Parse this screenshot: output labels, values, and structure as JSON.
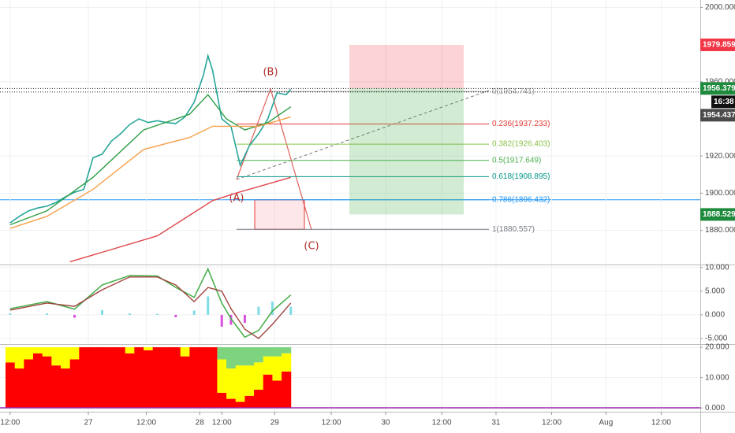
{
  "chart_data": [
    {
      "type": "line",
      "xlim": [
        -2.2,
        150
      ],
      "ylim": [
        1862,
        2004
      ],
      "grid": true,
      "yticks": [
        {
          "value": 2000,
          "label": "2000.000"
        },
        {
          "value": 1960,
          "label": "1960.000"
        },
        {
          "value": 1920,
          "label": "1920.000"
        },
        {
          "value": 1900,
          "label": "1900.000"
        },
        {
          "value": 1880,
          "label": "1880.000"
        }
      ],
      "series": [
        {
          "color": "#26a69a",
          "x": [
            0,
            2,
            4,
            6,
            8,
            10,
            12,
            14,
            16,
            18,
            20,
            22,
            24,
            26,
            28,
            30,
            32,
            34,
            36,
            38,
            40,
            42,
            43,
            44,
            46,
            48,
            50,
            52,
            54,
            56,
            58,
            60,
            61
          ],
          "values": [
            1884,
            1887.5,
            1890.5,
            1892,
            1893,
            1895,
            1898,
            1900.5,
            1902,
            1919,
            1921,
            1928,
            1932,
            1937,
            1940,
            1938,
            1939,
            1938,
            1937.5,
            1941,
            1949,
            1963.5,
            1974,
            1966,
            1940,
            1936,
            1915,
            1925.5,
            1932,
            1940,
            1954,
            1953,
            1956
          ]
        },
        {
          "color": "#2e9e46",
          "x": [
            0,
            8,
            18,
            29,
            39,
            43,
            47,
            51,
            56,
            61
          ],
          "values": [
            1883,
            1890.5,
            1908.5,
            1934,
            1942.5,
            1953,
            1940,
            1934,
            1938,
            1946.5
          ]
        },
        {
          "color": "#f5a04a",
          "x": [
            0,
            8,
            18,
            29,
            39,
            44,
            49,
            54,
            61
          ],
          "values": [
            1881,
            1887.5,
            1902,
            1923.5,
            1930,
            1936,
            1936,
            1936,
            1941
          ]
        },
        {
          "color": "#e0474c",
          "x": [
            13,
            32,
            44,
            49,
            61
          ],
          "values": [
            1863,
            1877,
            1896,
            1900,
            1908.5
          ]
        }
      ],
      "fib_levels": [
        {
          "value": 1954.741,
          "label": "0(1954.741)",
          "color": "#9e9e9e"
        },
        {
          "value": 1937.233,
          "label": "0.236(1937.233)",
          "color": "#e53935"
        },
        {
          "value": 1926.403,
          "label": "0.382(1926.403)",
          "color": "#8bc34a"
        },
        {
          "value": 1917.649,
          "label": "0.5(1917.649)",
          "color": "#4caf50"
        },
        {
          "value": 1908.895,
          "label": "0.618(1908.895)",
          "color": "#009688"
        },
        {
          "value": 1896.432,
          "label": "0.786(1896.432)",
          "color": "#2196f3"
        },
        {
          "value": 1880.557,
          "label": "1(1880.557)",
          "color": "#787b86"
        }
      ],
      "price_tags": [
        {
          "value": 1979.859,
          "color": "#f23645"
        },
        {
          "value": 1956.379,
          "color": "#1e8a3c"
        },
        {
          "value": 1954.437,
          "color": "#4a4a4a"
        },
        {
          "value": 1888.529,
          "color": "#1e8a3c"
        }
      ],
      "countdown": "16:38",
      "annotations": [
        "(A)",
        "(B)",
        "(C)"
      ]
    },
    {
      "type": "line",
      "xlim": [
        -2.2,
        150
      ],
      "ylim": [
        -6,
        10.3
      ],
      "grid": true,
      "yticks": [
        {
          "value": 10,
          "label": "10.000"
        },
        {
          "value": 5,
          "label": "5.000"
        },
        {
          "value": 0,
          "label": "0.000"
        },
        {
          "value": -5,
          "label": "-5.000"
        }
      ],
      "series": [
        {
          "color": "#4caf50",
          "x": [
            0,
            8,
            14,
            20,
            26,
            32,
            36,
            40,
            43,
            46,
            48,
            51,
            54,
            57,
            61
          ],
          "values": [
            1.3,
            2.8,
            1.2,
            6.3,
            8.3,
            8.2,
            5.8,
            3.7,
            9.7,
            2.5,
            -0.8,
            -4.7,
            -3.3,
            0.8,
            4.2
          ]
        },
        {
          "color": "#a1443f",
          "x": [
            0,
            8,
            14,
            20,
            26,
            32,
            36,
            40,
            43,
            46,
            48,
            51,
            54,
            57,
            61
          ],
          "values": [
            1.0,
            2.5,
            1.8,
            5.3,
            8,
            8,
            6.3,
            2.8,
            5.8,
            5,
            1.3,
            -3,
            -5,
            -2,
            2.5
          ]
        }
      ],
      "histogram": {
        "colors": [
          "#7fdbe6",
          "#d84fe0"
        ],
        "x": [
          0,
          8,
          14,
          20,
          26,
          32,
          36,
          40,
          43,
          46,
          48,
          51,
          54,
          57,
          61
        ],
        "values": [
          0.3,
          0.3,
          -0.6,
          1,
          0.3,
          0.2,
          -0.5,
          0.9,
          3.9,
          -2.5,
          -2.1,
          -1.7,
          1.7,
          2.8,
          1.7
        ]
      }
    },
    {
      "type": "bar",
      "stacked": true,
      "xlim": [
        -2.2,
        150
      ],
      "ylim": [
        -1,
        20.8
      ],
      "grid": true,
      "yticks": [
        {
          "value": 20,
          "label": "20.000"
        },
        {
          "value": 10,
          "label": "10.000"
        },
        {
          "value": 0,
          "label": "0.000"
        }
      ],
      "xticks": [
        {
          "value": 0,
          "label": "12:00"
        },
        {
          "value": 17,
          "label": "27"
        },
        {
          "value": 29.6,
          "label": "12:00"
        },
        {
          "value": 41.2,
          "label": "28"
        },
        {
          "value": 46,
          "label": "12:00"
        },
        {
          "value": 57.5,
          "label": "29"
        },
        {
          "value": 69.8,
          "label": "12:00"
        },
        {
          "value": 81.6,
          "label": "30"
        },
        {
          "value": 93.8,
          "label": "12:00"
        },
        {
          "value": 105.6,
          "label": "31"
        },
        {
          "value": 117.7,
          "label": "12:00"
        },
        {
          "value": 129.5,
          "label": "Aug"
        },
        {
          "value": 141.5,
          "label": "12:00"
        }
      ],
      "x": [
        0,
        2,
        4,
        6,
        8,
        10,
        12,
        14,
        16,
        18,
        20,
        22,
        24,
        26,
        28,
        30,
        32,
        34,
        36,
        38,
        40,
        42,
        44,
        46,
        48,
        50,
        52,
        54,
        56,
        58,
        60
      ],
      "series": [
        {
          "color": "#ff0000",
          "values": [
            15,
            13,
            16,
            18,
            17,
            14,
            13,
            16,
            20,
            20,
            20,
            20,
            20,
            18,
            20,
            19,
            20,
            20,
            20,
            17,
            20,
            20,
            20,
            5,
            3,
            2,
            4,
            6,
            11,
            9,
            12
          ]
        },
        {
          "color": "#ffff00",
          "values": [
            5,
            7,
            4,
            2,
            3,
            6,
            7,
            4,
            0,
            0,
            0,
            0,
            0,
            2,
            0,
            1,
            0,
            0,
            0,
            3,
            0,
            0,
            0,
            11,
            10,
            12,
            10,
            9,
            6,
            8,
            6
          ]
        },
        {
          "color": "#7ed47e",
          "values": [
            0,
            0,
            0,
            0,
            0,
            0,
            0,
            0,
            0,
            0,
            0,
            0,
            0,
            0,
            0,
            0,
            0,
            0,
            0,
            0,
            0,
            0,
            0,
            4,
            7,
            6,
            6,
            5,
            3,
            3,
            2
          ]
        }
      ]
    }
  ]
}
